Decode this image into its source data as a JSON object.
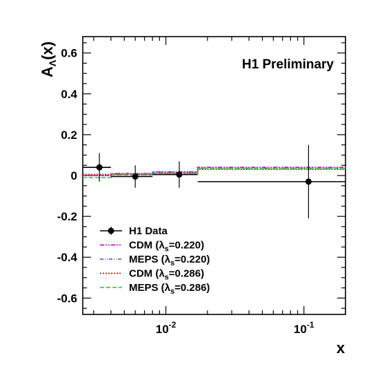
{
  "chart_data": {
    "type": "scatter",
    "annotation": "H1 Preliminary",
    "xlabel": "x",
    "ylabel": {
      "main": "A",
      "sub": "Λ",
      "suffix": "(x)"
    },
    "x_scale": "log",
    "xlim": [
      0.0025,
      0.2
    ],
    "ylim": [
      -0.68,
      0.68
    ],
    "x_ticks": [
      {
        "value": 0.01,
        "base": "10",
        "exp": "-2"
      },
      {
        "value": 0.1,
        "base": "10",
        "exp": "-1"
      }
    ],
    "y_ticks": [
      {
        "value": 0.6,
        "label": "0.6"
      },
      {
        "value": 0.4,
        "label": "0.4"
      },
      {
        "value": 0.2,
        "label": "0.2"
      },
      {
        "value": 0,
        "label": "0"
      },
      {
        "value": -0.2,
        "label": "-0.2"
      },
      {
        "value": -0.4,
        "label": "-0.4"
      },
      {
        "value": -0.6,
        "label": "-0.6"
      }
    ],
    "grid": false,
    "legend_position": "bottom-left",
    "data_series": {
      "name": "H1 Data",
      "color": "#000000",
      "points": [
        {
          "x": 0.0033,
          "y": 0.04,
          "xlo": 0.0025,
          "xhi": 0.004,
          "yerr": 0.07
        },
        {
          "x": 0.006,
          "y": -0.005,
          "xlo": 0.004,
          "xhi": 0.008,
          "yerr": 0.055
        },
        {
          "x": 0.0125,
          "y": 0.005,
          "xlo": 0.008,
          "xhi": 0.017,
          "yerr": 0.065
        },
        {
          "x": 0.108,
          "y": -0.03,
          "xlo": 0.017,
          "xhi": 0.2,
          "yerr": 0.18
        }
      ]
    },
    "bin_edges": [
      0.0025,
      0.004,
      0.008,
      0.017,
      0.2
    ],
    "model_series": [
      {
        "name": "CDM",
        "lambda": "0.220",
        "color": "#e000e0",
        "dash": "6,2,2,2,2,2",
        "values": [
          0.0,
          0.008,
          0.018,
          0.04
        ]
      },
      {
        "name": "MEPS",
        "lambda": "0.220",
        "color": "#6a5acd",
        "dash": "5,2,1,2,1,2",
        "values": [
          0.0,
          0.01,
          0.016,
          0.036
        ]
      },
      {
        "name": "CDM",
        "lambda": "0.286",
        "color": "#ee0000",
        "dash": "2,2",
        "values": [
          0.005,
          0.005,
          0.012,
          0.03
        ]
      },
      {
        "name": "MEPS",
        "lambda": "0.286",
        "color": "#44cc44",
        "dash": "6,3",
        "values": [
          -0.01,
          0.003,
          0.01,
          0.033
        ]
      }
    ],
    "legend_entries": [
      "H1 Data",
      "CDM (λ",
      "MEPS (λ",
      "CDM (λ",
      "MEPS (λ"
    ]
  }
}
